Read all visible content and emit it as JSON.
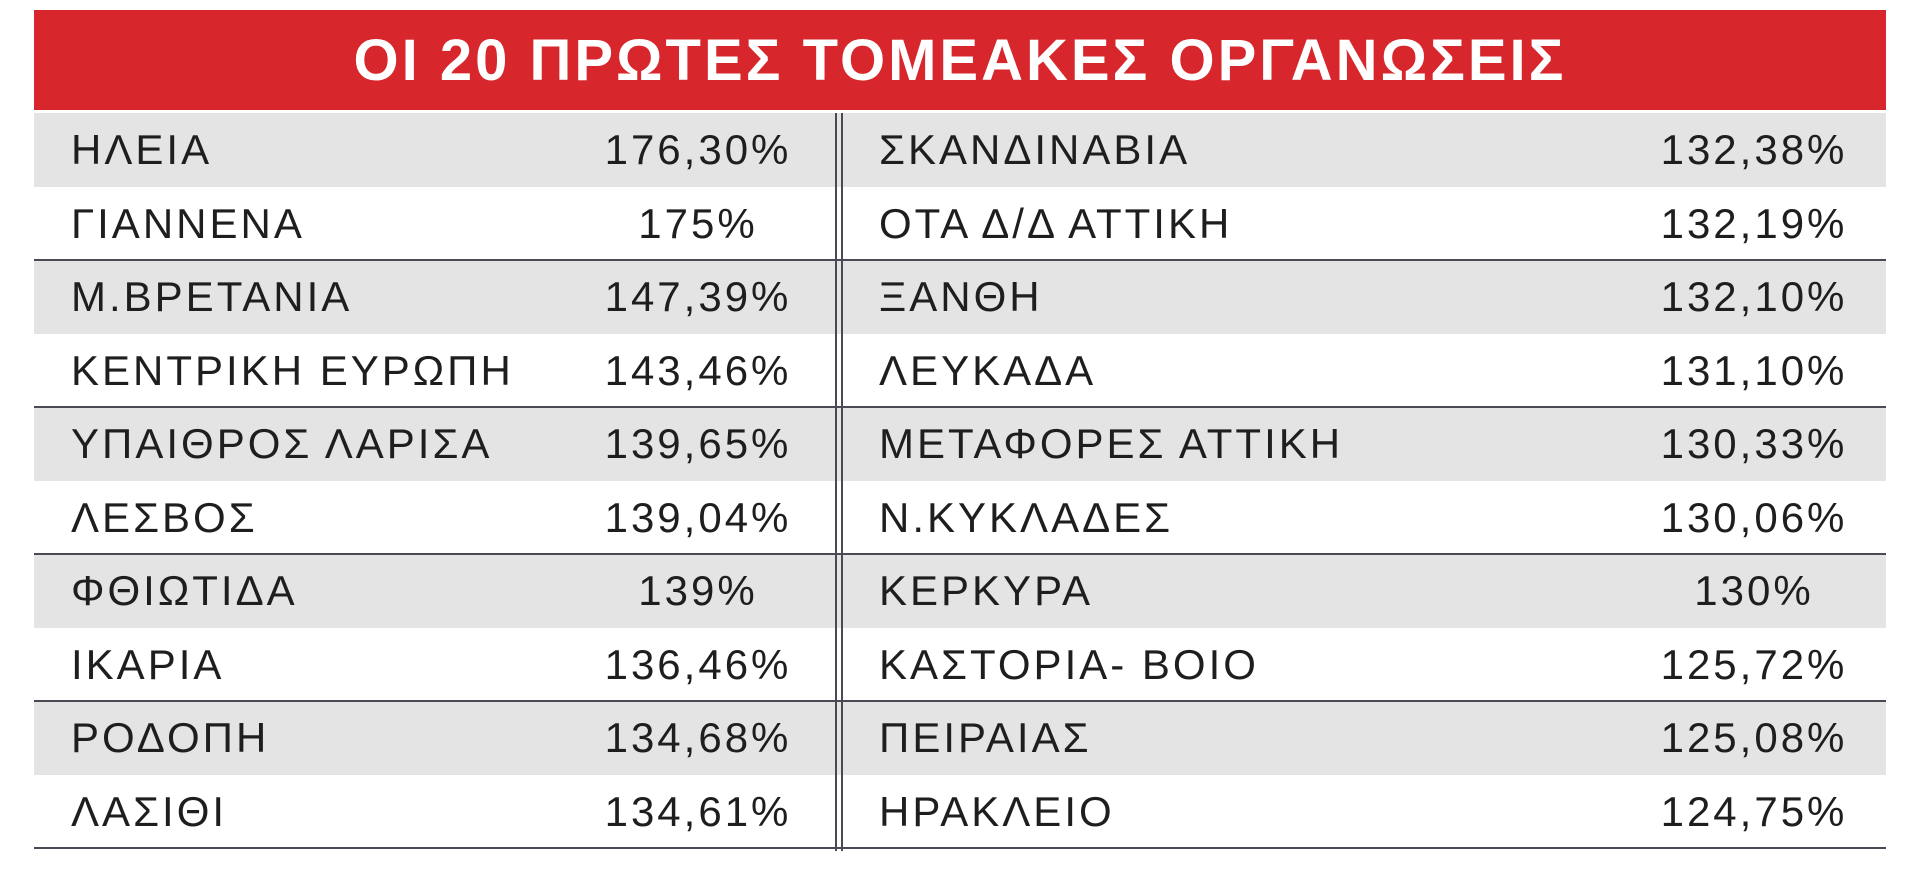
{
  "table": {
    "title": "ΟΙ 20 ΠΡΩΤΕΣ ΤΟΜΕΑΚΕΣ ΟΡΓΑΝΩΣΕΙΣ",
    "rows": [
      [
        "ΗΛΕΙΑ",
        "176,30%",
        "ΣΚΑΝΔΙΝΑΒΙΑ",
        "132,38%"
      ],
      [
        "ΓΙΑΝΝΕΝΑ",
        "175%",
        "ΟΤΑ Δ/Δ ΑΤΤΙΚΗ",
        "132,19%"
      ],
      [
        "Μ.ΒΡΕΤΑΝΙΑ",
        "147,39%",
        "ΞΑΝΘΗ",
        "132,10%"
      ],
      [
        "ΚΕΝΤΡΙΚΗ ΕΥΡΩΠΗ",
        "143,46%",
        "ΛΕΥΚΑΔΑ",
        "131,10%"
      ],
      [
        "ΥΠΑΙΘΡΟΣ ΛΑΡΙΣΑ",
        "139,65%",
        "ΜΕΤΑΦΟΡΕΣ ΑΤΤΙΚΗ",
        "130,33%"
      ],
      [
        "ΛΕΣΒΟΣ",
        "139,04%",
        "Ν.ΚΥΚΛΑΔΕΣ",
        "130,06%"
      ],
      [
        "ΦΘΙΩΤΙΔΑ",
        "139%",
        "ΚΕΡΚΥΡΑ",
        "130%"
      ],
      [
        "ΙΚΑΡΙΑ",
        "136,46%",
        "ΚΑΣΤΟΡΙΑ- ΒΟΙΟ",
        "125,72%"
      ],
      [
        "ΡΟΔΟΠΗ",
        "134,68%",
        "ΠΕΙΡΑΙΑΣ",
        "125,08%"
      ],
      [
        "ΛΑΣΙΘΙ",
        "134,61%",
        "ΗΡΑΚΛΕΙΟ",
        "124,75%"
      ]
    ]
  }
}
